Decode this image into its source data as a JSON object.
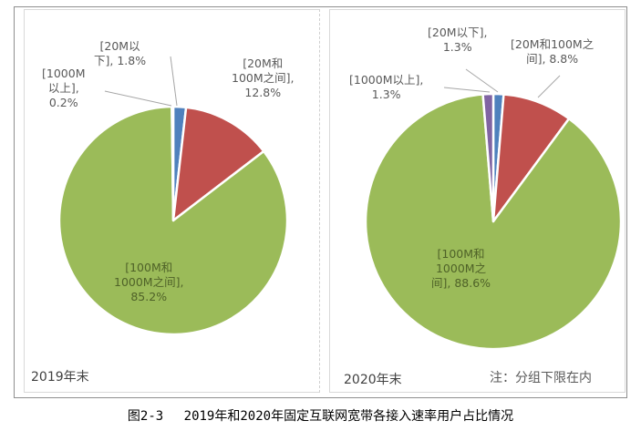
{
  "chart_data": [
    {
      "type": "pie",
      "title": "2019年末",
      "slices": [
        {
          "label": "[20M以下], 1.8%",
          "category": "20M以下",
          "value": 1.8,
          "color": "#4f81bd"
        },
        {
          "label": "[20M和100M之间], 12.8%",
          "category": "20M和100M之间",
          "value": 12.8,
          "color": "#c0504d"
        },
        {
          "label": "[100M和1000M之间], 85.2%",
          "category": "100M和1000M之间",
          "value": 85.2,
          "color": "#9bbb59"
        },
        {
          "label": "[1000M以上], 0.2%",
          "category": "1000M以上",
          "value": 0.2,
          "color": "#8064a2"
        }
      ],
      "label_lines": {
        "s0": [
          "[20M以",
          "下], 1.8%"
        ],
        "s1": [
          "[20M和",
          "100M之间],",
          "12.8%"
        ],
        "s2": [
          "[100M和",
          "1000M之间],",
          "85.2%"
        ],
        "s3": [
          "[1000M",
          "以上],",
          "0.2%"
        ]
      }
    },
    {
      "type": "pie",
      "title": "2020年末",
      "slices": [
        {
          "label": "[20M以下], 1.3%",
          "category": "20M以下",
          "value": 1.3,
          "color": "#4f81bd"
        },
        {
          "label": "[20M和100M之间], 8.8%",
          "category": "20M和100M之间",
          "value": 8.8,
          "color": "#c0504d"
        },
        {
          "label": "[100M和1000M之间], 88.6%",
          "category": "100M和1000M之间",
          "value": 88.6,
          "color": "#9bbb59"
        },
        {
          "label": "[1000M以上], 1.3%",
          "category": "1000M以上",
          "value": 1.3,
          "color": "#8064a2"
        }
      ],
      "label_lines": {
        "s0": [
          "[20M以下],",
          "1.3%"
        ],
        "s1": [
          "[20M和100M之",
          "间], 8.8%"
        ],
        "s2": [
          "[100M和",
          "1000M之",
          "间], 88.6%"
        ],
        "s3": [
          "[1000M以上],",
          "1.3%"
        ]
      }
    }
  ],
  "note": "注：分组下限在内",
  "caption": "图2-3　 2019年和2020年固定互联网宽带各接入速率用户占比情况"
}
